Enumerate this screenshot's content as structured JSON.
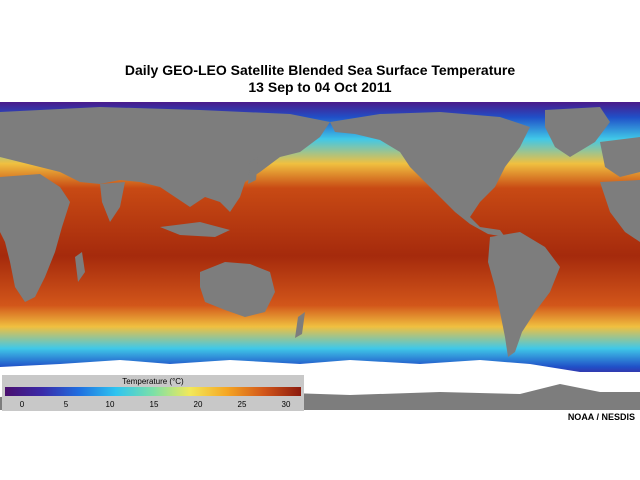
{
  "title": "Daily GEO-LEO Satellite Blended Sea Surface Temperature",
  "subtitle": "13 Sep to 04 Oct 2011",
  "legend": {
    "title": "Temperature (°C)",
    "ticks": [
      "0",
      "5",
      "10",
      "15",
      "20",
      "25",
      "30"
    ],
    "colors": [
      "#4a0f6e",
      "#3a2aa8",
      "#1f6fe0",
      "#2ec4f0",
      "#7be0a8",
      "#f2e95a",
      "#f5a623",
      "#d2561a",
      "#8b1a0e"
    ]
  },
  "credit": "NOAA / NESDIS",
  "map_colors": {
    "land": "#7d7d7d",
    "ice": "#ffffff",
    "warm": "#c84a14",
    "hot": "#a52a0c",
    "mild": "#f0c040",
    "cool": "#40c8e8",
    "cold": "#2050c8",
    "polar": "#4a1a8a"
  }
}
